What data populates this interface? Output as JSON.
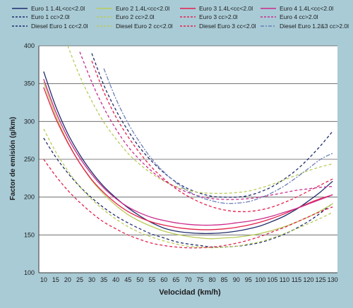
{
  "chart_data": {
    "type": "line",
    "xlabel": "Velocidad (km/h)",
    "ylabel": "Factor de emisión (g/km)",
    "xlim": [
      10,
      130
    ],
    "ylim": [
      100,
      400
    ],
    "x_ticks": [
      10,
      15,
      20,
      25,
      30,
      35,
      40,
      45,
      50,
      55,
      60,
      65,
      70,
      75,
      80,
      85,
      90,
      95,
      100,
      105,
      110,
      115,
      120,
      125,
      130
    ],
    "y_ticks": [
      100,
      150,
      200,
      250,
      300,
      350,
      400
    ],
    "grid": "horizontal",
    "legend_position": "top",
    "background": "#a9cbd6",
    "plot_background": "#ffffff",
    "x": [
      10,
      15,
      20,
      25,
      30,
      35,
      40,
      45,
      50,
      55,
      60,
      65,
      70,
      75,
      80,
      85,
      90,
      95,
      100,
      105,
      110,
      115,
      120,
      125,
      130
    ],
    "series": [
      {
        "name": "Euro 1 1.4L<cc<2.0l",
        "color": "#1f2d6b",
        "dash": "solid",
        "values": [
          366,
          320,
          284,
          256,
          233,
          214,
          199,
          186,
          175,
          166,
          159,
          155,
          153,
          152,
          152,
          153,
          155,
          158,
          162,
          168,
          175,
          184,
          195,
          207,
          221
        ]
      },
      {
        "name": "Euro 1 cc>2.0l",
        "color": "#1f2d6b",
        "dash": "dash",
        "values": [
          null,
          null,
          null,
          null,
          390,
          348,
          315,
          288,
          265,
          247,
          232,
          220,
          211,
          205,
          201,
          200,
          200,
          202,
          207,
          214,
          224,
          236,
          251,
          268,
          287
        ]
      },
      {
        "name": "Diesel Euro 1 cc<2.0l",
        "color": "#1f2d6b",
        "dash": "dash",
        "values": [
          278,
          253,
          232,
          214,
          199,
          186,
          175,
          166,
          158,
          151,
          146,
          141,
          138,
          136,
          134,
          134,
          135,
          137,
          140,
          145,
          151,
          159,
          168,
          179,
          192
        ]
      },
      {
        "name": "Euro 2 1.4L<cc<2.0l",
        "color": "#b8cc58",
        "dash": "solid",
        "values": [
          352,
          308,
          273,
          245,
          222,
          204,
          189,
          177,
          168,
          161,
          155,
          151,
          148,
          146,
          145,
          146,
          147,
          149,
          152,
          156,
          161,
          167,
          174,
          182,
          191
        ]
      },
      {
        "name": "Euro 2 cc>2.0l",
        "color": "#b8cc58",
        "dash": "dash",
        "values": [
          null,
          null,
          400,
          360,
          327,
          299,
          277,
          258,
          243,
          231,
          221,
          214,
          209,
          206,
          205,
          205,
          206,
          208,
          212,
          217,
          223,
          229,
          235,
          240,
          244
        ]
      },
      {
        "name": "Diesel Euro 2 cc<2.0l",
        "color": "#b8cc58",
        "dash": "dash",
        "values": [
          290,
          260,
          235,
          214,
          197,
          183,
          171,
          161,
          153,
          147,
          142,
          138,
          135,
          134,
          133,
          134,
          135,
          138,
          141,
          146,
          152,
          158,
          165,
          172,
          180
        ]
      },
      {
        "name": "Euro 3 1.4L<cc<2.0l",
        "color": "#e4204c",
        "dash": "solid",
        "values": [
          345,
          304,
          272,
          245,
          223,
          206,
          192,
          181,
          173,
          167,
          163,
          160,
          158,
          157,
          157,
          158,
          160,
          163,
          167,
          172,
          178,
          185,
          192,
          198,
          203
        ]
      },
      {
        "name": "Euro 3 cc>2.0l",
        "color": "#e4204c",
        "dash": "dash",
        "values": [
          null,
          null,
          null,
          null,
          380,
          339,
          306,
          280,
          258,
          239,
          224,
          211,
          201,
          193,
          187,
          183,
          181,
          181,
          183,
          187,
          193,
          200,
          208,
          216,
          224
        ]
      },
      {
        "name": "Diesel Euro 3 cc<2.0l",
        "color": "#e4204c",
        "dash": "dash",
        "values": [
          250,
          228,
          209,
          193,
          179,
          167,
          158,
          150,
          144,
          139,
          136,
          134,
          133,
          133,
          134,
          136,
          139,
          143,
          148,
          154,
          160,
          167,
          174,
          181,
          187
        ]
      },
      {
        "name": "Euro 4 1.4L<cc<2.0l",
        "color": "#cc2a8c",
        "dash": "solid",
        "values": [
          356,
          313,
          279,
          252,
          230,
          212,
          198,
          187,
          179,
          173,
          169,
          166,
          164,
          163,
          163,
          164,
          166,
          168,
          171,
          175,
          180,
          185,
          191,
          197,
          203
        ]
      },
      {
        "name": "Euro 4 cc>2.0l",
        "color": "#cc2a8c",
        "dash": "dash",
        "values": [
          null,
          null,
          null,
          392,
          352,
          318,
          290,
          267,
          249,
          234,
          222,
          213,
          206,
          201,
          198,
          197,
          197,
          198,
          200,
          203,
          206,
          209,
          211,
          213,
          214
        ]
      },
      {
        "name": "Diesel Euro 1.2&3 cc>2.0l",
        "color": "#6a7fb8",
        "dash": "dashdot",
        "values": [
          null,
          null,
          null,
          null,
          null,
          370,
          330,
          298,
          272,
          250,
          233,
          219,
          208,
          200,
          195,
          192,
          192,
          194,
          199,
          206,
          215,
          226,
          238,
          250,
          258
        ]
      }
    ]
  }
}
